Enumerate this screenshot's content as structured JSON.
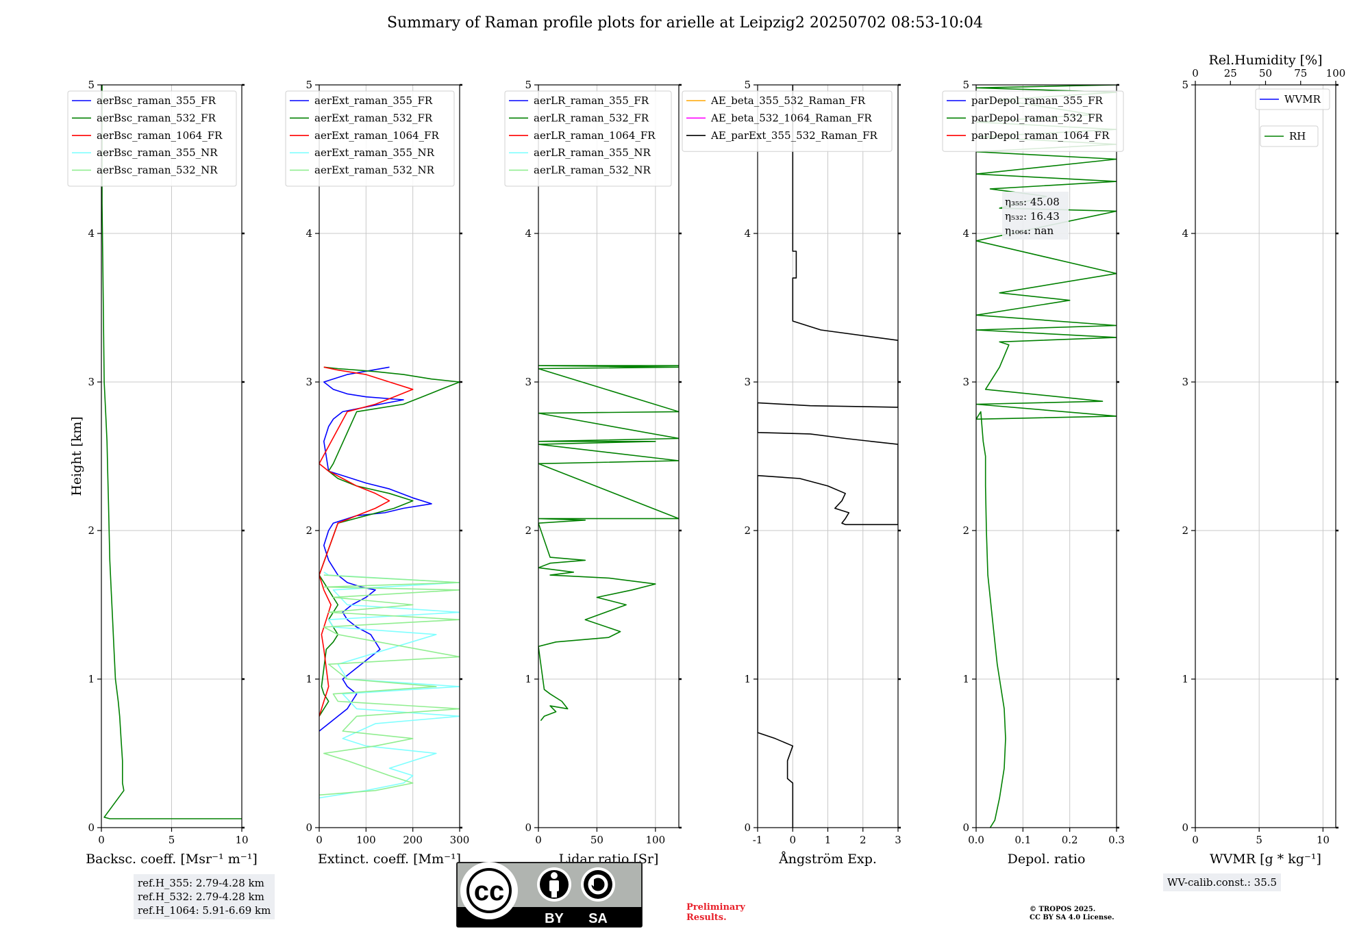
{
  "title": "Summary of Raman profile plots for arielle at Leipzig2 20250702 08:53-10:04",
  "colors": {
    "blue": "#0000ff",
    "green": "#008000",
    "red": "#ff0000",
    "cyan": "#80ffff",
    "lightgreen": "#90ee90",
    "orange": "#ffa500",
    "magenta": "#ff00ff",
    "black": "#000000",
    "grid": "#c8c8c8",
    "box": "#eceef2",
    "prelim": "#e8202a"
  },
  "chart_data": [
    {
      "type": "line",
      "xlabel": "Backsc. coeff. [Msr⁻¹ m⁻¹]",
      "ylabel": "Height [km]",
      "xlim": [
        0,
        10
      ],
      "ylim": [
        0,
        5
      ],
      "xticks": [
        0,
        5,
        10
      ],
      "yticks": [
        0,
        1,
        2,
        3,
        4,
        5
      ],
      "grid": true,
      "legend": "top-left",
      "series": [
        {
          "name": "aerBsc_raman_355_FR",
          "color": "#0000ff",
          "x": [],
          "y": []
        },
        {
          "name": "aerBsc_raman_532_FR",
          "color": "#008000",
          "x": [
            10,
            0.6,
            0.2,
            1.6,
            1.5,
            1.5,
            1.4,
            1.3,
            1.2,
            1.0,
            0.9,
            0.8,
            0.7,
            0.6,
            0.55,
            0.5,
            0.45,
            0.4,
            0.3,
            0.2,
            0.15,
            0.1,
            0.05,
            0.05,
            0.05
          ],
          "y": [
            0.06,
            0.06,
            0.07,
            0.25,
            0.3,
            0.45,
            0.6,
            0.75,
            0.85,
            1.0,
            1.2,
            1.4,
            1.6,
            1.8,
            2.0,
            2.2,
            2.4,
            2.6,
            2.8,
            3.0,
            3.4,
            3.8,
            4.2,
            4.6,
            5.0
          ]
        },
        {
          "name": "aerBsc_raman_1064_FR",
          "color": "#ff0000",
          "x": [],
          "y": []
        },
        {
          "name": "aerBsc_raman_355_NR",
          "color": "#80ffff",
          "x": [],
          "y": []
        },
        {
          "name": "aerBsc_raman_532_NR",
          "color": "#90ee90",
          "x": [],
          "y": []
        }
      ]
    },
    {
      "type": "line",
      "xlabel": "Extinct. coeff. [Mm⁻¹]",
      "ylabel": "",
      "xlim": [
        0,
        300
      ],
      "ylim": [
        0,
        5
      ],
      "xticks": [
        0,
        100,
        200,
        300
      ],
      "yticks": [
        0,
        1,
        2,
        3,
        4,
        5
      ],
      "grid": true,
      "legend": "top-left",
      "series": [
        {
          "name": "aerExt_raman_355_FR",
          "color": "#0000ff",
          "x": [
            0,
            20,
            40,
            60,
            70,
            80,
            60,
            50,
            70,
            90,
            130,
            110,
            80,
            60,
            50,
            70,
            100,
            120,
            90,
            60,
            40,
            30,
            20,
            10,
            20,
            30,
            80,
            140,
            180,
            240,
            200,
            150,
            100,
            60,
            20,
            10,
            20,
            30,
            50,
            130,
            180,
            100,
            60,
            30,
            10,
            60,
            150
          ],
          "y": [
            0.65,
            0.7,
            0.75,
            0.8,
            0.85,
            0.9,
            0.95,
            1.0,
            1.05,
            1.1,
            1.2,
            1.3,
            1.35,
            1.4,
            1.45,
            1.5,
            1.55,
            1.6,
            1.62,
            1.65,
            1.7,
            1.75,
            1.8,
            1.9,
            2.0,
            2.05,
            2.1,
            2.12,
            2.15,
            2.18,
            2.22,
            2.28,
            2.32,
            2.36,
            2.4,
            2.6,
            2.7,
            2.75,
            2.8,
            2.85,
            2.88,
            2.9,
            2.92,
            2.95,
            3.0,
            3.05,
            3.1
          ]
        },
        {
          "name": "aerExt_raman_532_FR",
          "color": "#008000",
          "x": [
            0,
            10,
            20,
            10,
            5,
            15,
            30,
            40,
            30,
            20,
            30,
            40,
            20,
            0,
            40,
            100,
            160,
            200,
            150,
            80,
            40,
            20,
            30,
            80,
            120,
            180,
            220,
            260,
            300,
            240,
            180,
            120,
            80,
            40,
            10
          ],
          "y": [
            0.75,
            0.8,
            0.85,
            0.9,
            0.95,
            1.2,
            1.25,
            1.3,
            1.35,
            1.4,
            1.45,
            1.5,
            1.6,
            1.7,
            2.05,
            2.1,
            2.15,
            2.2,
            2.25,
            2.3,
            2.35,
            2.4,
            2.45,
            2.8,
            2.82,
            2.85,
            2.9,
            2.95,
            3.0,
            3.02,
            3.05,
            3.07,
            3.08,
            3.09,
            3.1
          ]
        },
        {
          "name": "aerExt_raman_1064_FR",
          "color": "#ff0000",
          "x": [
            0,
            5,
            10,
            15,
            20,
            10,
            5,
            15,
            25,
            10,
            0,
            40,
            80,
            120,
            150,
            120,
            80,
            50,
            20,
            0,
            60,
            120,
            160,
            200,
            150,
            100,
            40,
            10
          ],
          "y": [
            0.75,
            0.8,
            0.85,
            0.9,
            0.95,
            1.2,
            1.3,
            1.4,
            1.5,
            1.6,
            1.7,
            2.05,
            2.1,
            2.15,
            2.2,
            2.25,
            2.3,
            2.35,
            2.4,
            2.45,
            2.8,
            2.85,
            2.9,
            2.95,
            3.0,
            3.05,
            3.08,
            3.1
          ]
        },
        {
          "name": "aerExt_raman_355_NR",
          "color": "#80ffff",
          "x": [
            0,
            100,
            180,
            200,
            150,
            250,
            100,
            50,
            120,
            300,
            80,
            50,
            300,
            60,
            40,
            250,
            30,
            20,
            300,
            60,
            30,
            300,
            20,
            10
          ],
          "y": [
            0.2,
            0.25,
            0.3,
            0.35,
            0.4,
            0.5,
            0.55,
            0.6,
            0.7,
            0.75,
            0.8,
            0.9,
            0.95,
            1.0,
            1.1,
            1.3,
            1.35,
            1.4,
            1.45,
            1.5,
            1.6,
            1.65,
            1.7,
            1.72
          ]
        },
        {
          "name": "aerExt_raman_532_NR",
          "color": "#90ee90",
          "x": [
            0,
            120,
            200,
            150,
            60,
            10,
            120,
            200,
            50,
            80,
            300,
            40,
            30,
            250,
            60,
            20,
            300,
            40,
            10,
            300,
            20,
            200,
            30,
            300,
            10,
            300,
            10
          ],
          "y": [
            0.22,
            0.25,
            0.3,
            0.35,
            0.45,
            0.5,
            0.55,
            0.6,
            0.65,
            0.75,
            0.8,
            0.85,
            0.9,
            0.95,
            1.0,
            1.1,
            1.15,
            1.3,
            1.35,
            1.4,
            1.45,
            1.5,
            1.55,
            1.6,
            1.62,
            1.65,
            1.7
          ]
        }
      ]
    },
    {
      "type": "line",
      "xlabel": "Lidar ratio [Sr]",
      "ylabel": "",
      "xlim": [
        0,
        120
      ],
      "ylim": [
        0,
        5
      ],
      "xticks": [
        0,
        50,
        100
      ],
      "yticks": [
        0,
        1,
        2,
        3,
        4,
        5
      ],
      "grid": true,
      "legend": "top-left",
      "series": [
        {
          "name": "aerLR_raman_355_FR",
          "color": "#0000ff",
          "x": [],
          "y": []
        },
        {
          "name": "aerLR_raman_532_FR",
          "color": "#008000",
          "x": [
            2,
            5,
            15,
            10,
            25,
            20,
            10,
            5,
            0,
            15,
            60,
            70,
            40,
            75,
            50,
            80,
            100,
            60,
            10,
            30,
            0,
            10,
            40,
            10,
            0,
            40,
            0,
            120,
            0,
            120,
            0,
            100,
            0,
            120,
            0,
            120,
            0,
            120,
            0,
            120
          ],
          "y": [
            0.72,
            0.75,
            0.78,
            0.82,
            0.8,
            0.85,
            0.9,
            0.93,
            1.22,
            1.25,
            1.28,
            1.32,
            1.4,
            1.5,
            1.55,
            1.6,
            1.64,
            1.68,
            1.7,
            1.72,
            1.75,
            1.78,
            1.8,
            1.82,
            2.05,
            2.07,
            2.08,
            2.08,
            2.45,
            2.47,
            2.58,
            2.6,
            2.6,
            2.62,
            2.79,
            2.8,
            3.09,
            3.1,
            3.11,
            3.11
          ]
        },
        {
          "name": "aerLR_raman_1064_FR",
          "color": "#ff0000",
          "x": [],
          "y": []
        },
        {
          "name": "aerLR_raman_355_NR",
          "color": "#80ffff",
          "x": [],
          "y": []
        },
        {
          "name": "aerLR_raman_532_NR",
          "color": "#90ee90",
          "x": [],
          "y": []
        }
      ]
    },
    {
      "type": "line",
      "xlabel": "Ångström Exp.",
      "ylabel": "",
      "xlim": [
        -1,
        3
      ],
      "ylim": [
        0,
        5
      ],
      "xticks": [
        -1,
        0,
        1,
        2,
        3
      ],
      "yticks": [
        0,
        1,
        2,
        3,
        4,
        5
      ],
      "grid": true,
      "legend": "top-left",
      "series": [
        {
          "name": "AE_beta_355_532_Raman_FR",
          "color": "#ffa500",
          "x": [],
          "y": []
        },
        {
          "name": "AE_beta_532_1064_Raman_FR",
          "color": "#ff00ff",
          "x": [],
          "y": []
        },
        {
          "name": "AE_parExt_355_532_Raman_FR",
          "color": "#000000",
          "x": [
            0,
            0,
            -0.15,
            -0.15,
            0,
            -0.5,
            -1,
            -1,
            0.2,
            1.0,
            1.5,
            1.4,
            1.2,
            1.6,
            1.5,
            1.4,
            1.5,
            1.9,
            2.2,
            3.0,
            3,
            1.5,
            0.5,
            -1,
            -1,
            0.5,
            3,
            3,
            0.8,
            0,
            0,
            0.1,
            0.1,
            0,
            0,
            0
          ],
          "y": [
            0,
            0.3,
            0.33,
            0.45,
            0.55,
            0.6,
            0.64,
            2.37,
            2.35,
            2.3,
            2.25,
            2.2,
            2.15,
            2.12,
            2.08,
            2.05,
            2.04,
            2.04,
            2.04,
            2.04,
            2.58,
            2.62,
            2.65,
            2.66,
            2.86,
            2.84,
            2.83,
            3.28,
            3.35,
            3.41,
            3.7,
            3.7,
            3.88,
            3.88,
            4.0,
            5.0
          ]
        }
      ]
    },
    {
      "type": "line",
      "xlabel": "Depol. ratio",
      "ylabel": "",
      "xlim": [
        0,
        0.3
      ],
      "ylim": [
        0,
        5
      ],
      "xticks": [
        0,
        0.1,
        0.2,
        0.3
      ],
      "xtick_labels": [
        "0.0",
        "0.1",
        "0.2",
        "0.3"
      ],
      "yticks": [
        0,
        1,
        2,
        3,
        4,
        5
      ],
      "grid": true,
      "legend": "top-left",
      "series": [
        {
          "name": "parDepol_raman_355_FR",
          "color": "#0000ff",
          "x": [],
          "y": []
        },
        {
          "name": "parDepol_raman_532_FR",
          "color": "#008000",
          "x": [
            0.03,
            0.04,
            0.05,
            0.06,
            0.063,
            0.06,
            0.045,
            0.035,
            0.025,
            0.022,
            0.02,
            0.02,
            0.015,
            0.01,
            0.0,
            0.3,
            0.0,
            0.27,
            0.02,
            0.05,
            0.07,
            0.05,
            0.3,
            0.0,
            0.3,
            0.0,
            0.2,
            0.05,
            0.3,
            0.0,
            0.3,
            0.05,
            0.15,
            0.03,
            0.3,
            0.0,
            0.3,
            0.0,
            0.3,
            0.0,
            0.3,
            0.0,
            0.25,
            0.05,
            0.3,
            0.0,
            0.3
          ],
          "y": [
            0.0,
            0.05,
            0.2,
            0.4,
            0.6,
            0.8,
            1.1,
            1.4,
            1.7,
            2.0,
            2.3,
            2.5,
            2.6,
            2.8,
            2.75,
            2.77,
            2.85,
            2.87,
            2.95,
            3.1,
            3.25,
            3.27,
            3.3,
            3.35,
            3.38,
            3.45,
            3.55,
            3.6,
            3.73,
            3.95,
            4.15,
            4.17,
            4.25,
            4.3,
            4.35,
            4.4,
            4.5,
            4.55,
            4.6,
            4.65,
            4.7,
            4.75,
            4.8,
            4.9,
            4.95,
            4.98,
            5.0
          ]
        },
        {
          "name": "parDepol_raman_1064_FR",
          "color": "#ff0000",
          "x": [],
          "y": []
        }
      ]
    },
    {
      "type": "line",
      "xlabel": "WVMR [g * kg⁻¹]",
      "ylabel": "",
      "top_xlabel": "Rel.Humidity [%]",
      "xlim": [
        0,
        11
      ],
      "ylim": [
        0,
        5
      ],
      "xticks": [
        0,
        5,
        10
      ],
      "top_xlim": [
        0,
        100
      ],
      "top_xticks": [
        0,
        25,
        50,
        75,
        100
      ],
      "yticks": [
        0,
        1,
        2,
        3,
        4,
        5
      ],
      "grid": true,
      "legend": "top-right",
      "series": [
        {
          "name": "WVMR",
          "color": "#0000ff",
          "x": [],
          "y": []
        },
        {
          "name": "RH",
          "color": "#008000",
          "x": [],
          "y": []
        }
      ]
    }
  ],
  "depol_annotation": {
    "line1": "η₃₅₅: 45.08",
    "line2": "η₅₃₂: 16.43",
    "line3": "η₁₀₆₄: nan"
  },
  "refh_box": {
    "line1": "ref.H_355: 2.79-4.28 km",
    "line2": "ref.H_532: 2.79-4.28 km",
    "line3": "ref.H_1064: 5.91-6.69 km"
  },
  "wv_calib": "WV-calib.const.: 35.5",
  "preliminary": {
    "line1": "Preliminary",
    "line2": "Results."
  },
  "copyright": {
    "line1": "© TROPOS 2025.",
    "line2": "CC BY SA 4.0 License."
  },
  "license_badge": {
    "cc": "cc",
    "by": "BY",
    "sa": "SA"
  }
}
